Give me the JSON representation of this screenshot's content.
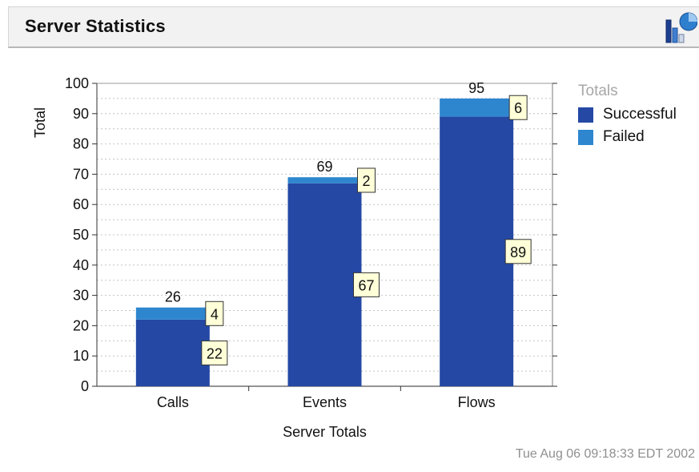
{
  "header": {
    "title": "Server Statistics",
    "icon": "chart-type-icon"
  },
  "chart_data": {
    "type": "bar",
    "stacked": true,
    "categories": [
      "Calls",
      "Events",
      "Flows"
    ],
    "series": [
      {
        "name": "Successful",
        "values": [
          22,
          67,
          89
        ],
        "color": "#2448a4"
      },
      {
        "name": "Failed",
        "values": [
          4,
          2,
          6
        ],
        "color": "#2e86cf"
      }
    ],
    "totals": [
      26,
      69,
      95
    ],
    "xlabel": "Server Totals",
    "ylabel": "Total",
    "ylim": [
      0,
      100
    ],
    "yticks": [
      0,
      10,
      20,
      30,
      40,
      50,
      60,
      70,
      80,
      90,
      100
    ],
    "grid": true,
    "legend": {
      "title": "Totals",
      "placement": "right"
    }
  },
  "footer": {
    "timestamp": "Tue Aug 06 09:18:33 EDT 2002"
  }
}
